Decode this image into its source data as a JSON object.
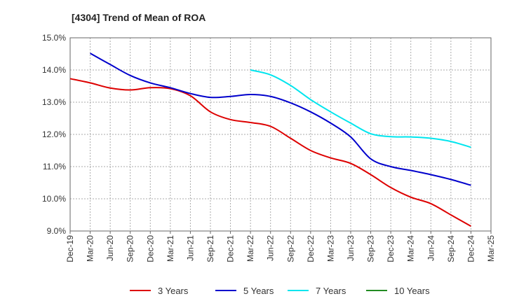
{
  "chart_data": {
    "type": "line",
    "title": "[4304]  Trend of Mean of ROA",
    "xlabel": "",
    "ylabel": "",
    "ylim": [
      9.0,
      15.0
    ],
    "yticks": [
      9.0,
      10.0,
      11.0,
      12.0,
      13.0,
      14.0,
      15.0
    ],
    "ytick_labels": [
      "9.0%",
      "10.0%",
      "11.0%",
      "12.0%",
      "13.0%",
      "14.0%",
      "15.0%"
    ],
    "x_start": "Dec-19",
    "x_period_months": 3,
    "xtick_labels": [
      "Dec-19",
      "Mar-20",
      "Jun-20",
      "Sep-20",
      "Dec-20",
      "Mar-21",
      "Jun-21",
      "Sep-21",
      "Dec-21",
      "Mar-22",
      "Jun-22",
      "Sep-22",
      "Dec-22",
      "Mar-23",
      "Jun-23",
      "Sep-23",
      "Dec-23",
      "Mar-24",
      "Jun-24",
      "Sep-24",
      "Dec-24",
      "Mar-25"
    ],
    "grid": true,
    "legend_position": "bottom",
    "series": [
      {
        "name": "3 Years",
        "color": "#dd0000",
        "start_index": 0,
        "values": [
          13.73,
          13.6,
          13.44,
          13.38,
          13.45,
          13.42,
          13.2,
          12.7,
          12.46,
          12.37,
          12.25,
          11.88,
          11.5,
          11.27,
          11.1,
          10.75,
          10.35,
          10.05,
          9.85,
          9.5,
          9.15
        ]
      },
      {
        "name": "5 Years",
        "color": "#0000cc",
        "start_index": 1,
        "values": [
          14.52,
          14.17,
          13.83,
          13.6,
          13.45,
          13.27,
          13.15,
          13.18,
          13.24,
          13.18,
          12.98,
          12.7,
          12.35,
          11.92,
          11.24,
          11.0,
          10.88,
          10.75,
          10.6,
          10.42
        ]
      },
      {
        "name": "7 Years",
        "color": "#00e5ee",
        "start_index": 9,
        "values": [
          14.0,
          13.85,
          13.52,
          13.08,
          12.7,
          12.35,
          12.02,
          11.93,
          11.92,
          11.88,
          11.78,
          11.6
        ]
      },
      {
        "name": "10 Years",
        "color": "#228b22",
        "start_index": 0,
        "values": []
      }
    ]
  }
}
